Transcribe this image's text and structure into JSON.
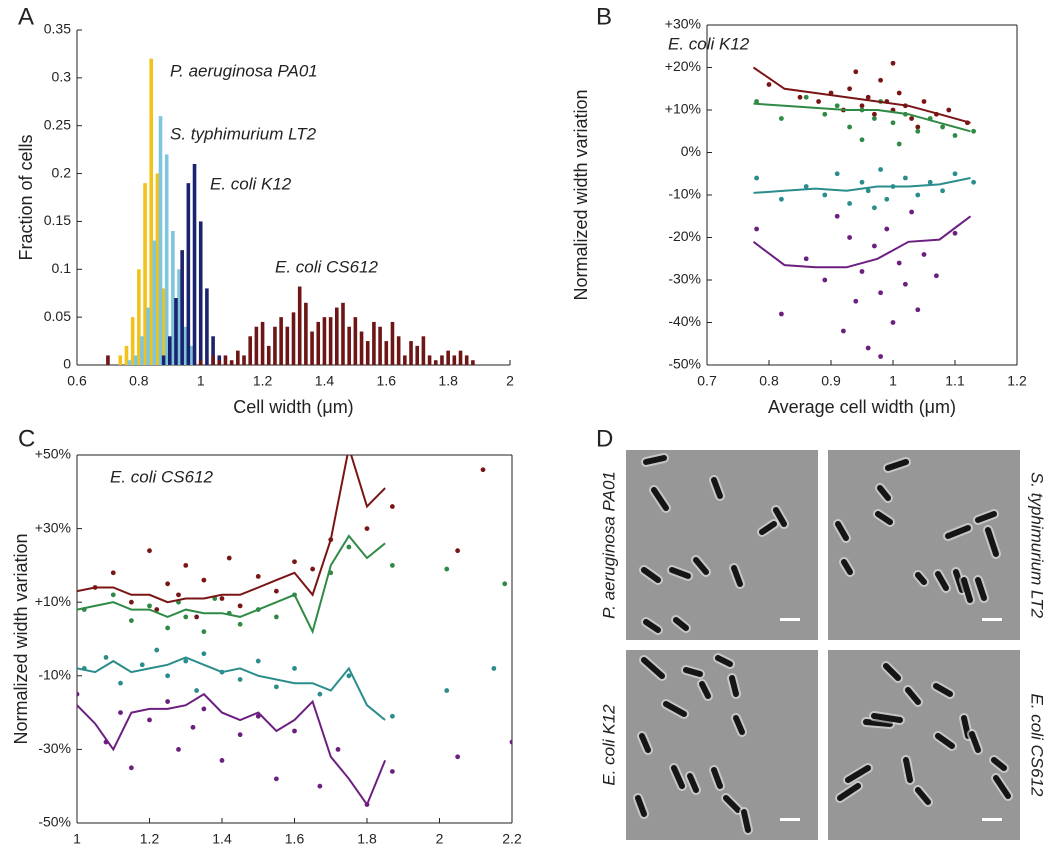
{
  "chart_data": [
    {
      "type": "bar",
      "panel_label": "A",
      "xlabel": "Cell width (μm)",
      "ylabel": "Fraction of cells",
      "xlim": [
        0.6,
        2
      ],
      "ylim": [
        0,
        0.35
      ],
      "xticks": [
        0.6,
        0.8,
        1,
        1.2,
        1.4,
        1.6,
        1.8,
        2
      ],
      "yticks": [
        0,
        0.05,
        0.1,
        0.15,
        0.2,
        0.25,
        0.3,
        0.35
      ],
      "box": false,
      "series": [
        {
          "name": "P. aeruginosa PA01",
          "color": "#f2c21b",
          "x": [
            0.74,
            0.76,
            0.78,
            0.8,
            0.82,
            0.84,
            0.86,
            0.88,
            0.9,
            0.92
          ],
          "values": [
            0.01,
            0.02,
            0.05,
            0.1,
            0.19,
            0.32,
            0.2,
            0.08,
            0.02,
            0.01
          ]
        },
        {
          "name": "S. typhimurium LT2",
          "color": "#7fc6dd",
          "x": [
            0.77,
            0.79,
            0.81,
            0.83,
            0.85,
            0.87,
            0.89,
            0.91,
            0.93,
            0.95,
            0.97
          ],
          "values": [
            0.005,
            0.01,
            0.03,
            0.06,
            0.13,
            0.26,
            0.22,
            0.14,
            0.1,
            0.04,
            0.02
          ]
        },
        {
          "name": "E. coli K12",
          "color": "#1c236e",
          "x": [
            0.88,
            0.9,
            0.92,
            0.94,
            0.96,
            0.98,
            1,
            1.02,
            1.04,
            1.06
          ],
          "values": [
            0.01,
            0.03,
            0.07,
            0.12,
            0.19,
            0.21,
            0.15,
            0.08,
            0.03,
            0.01
          ]
        },
        {
          "name": "E. coli CS612",
          "color": "#6e1616",
          "x": [
            0.7,
            1,
            1.04,
            1.06,
            1.08,
            1.1,
            1.12,
            1.14,
            1.16,
            1.18,
            1.2,
            1.22,
            1.24,
            1.26,
            1.28,
            1.3,
            1.32,
            1.34,
            1.36,
            1.38,
            1.4,
            1.42,
            1.44,
            1.46,
            1.48,
            1.5,
            1.52,
            1.54,
            1.56,
            1.58,
            1.6,
            1.62,
            1.64,
            1.66,
            1.68,
            1.7,
            1.72,
            1.74,
            1.76,
            1.78,
            1.8,
            1.82,
            1.84,
            1.86,
            1.88
          ],
          "values": [
            0.01,
            0.005,
            0.01,
            0.005,
            0.01,
            0.005,
            0.015,
            0.01,
            0.03,
            0.04,
            0.045,
            0.02,
            0.04,
            0.05,
            0.04,
            0.055,
            0.082,
            0.065,
            0.035,
            0.045,
            0.05,
            0.05,
            0.06,
            0.065,
            0.04,
            0.05,
            0.035,
            0.025,
            0.045,
            0.04,
            0.025,
            0.045,
            0.03,
            0.01,
            0.025,
            0.02,
            0.03,
            0.01,
            0.005,
            0.01,
            0.015,
            0.01,
            0.015,
            0.01,
            0.005
          ]
        }
      ]
    },
    {
      "type": "scatter",
      "panel_label": "B",
      "xlabel": "Average cell width (μm)",
      "ylabel": "Normalized width variation",
      "annotation": {
        "text": "E. coli K12",
        "color": "#1c236e"
      },
      "xlim": [
        0.7,
        1.2
      ],
      "ylim": [
        -50,
        30
      ],
      "xticks": [
        0.7,
        0.8,
        0.9,
        1,
        1.1,
        1.2
      ],
      "yticks": [
        {
          "value": -50,
          "label": "-50%"
        },
        {
          "value": -40,
          "label": "-40%"
        },
        {
          "value": -30,
          "label": "-30%"
        },
        {
          "value": -20,
          "label": "-20%"
        },
        {
          "value": -10,
          "label": "-10%"
        },
        {
          "value": 0,
          "label": "0%"
        },
        {
          "value": 10,
          "label": "+10%"
        },
        {
          "value": 20,
          "label": "+20%"
        },
        {
          "value": 30,
          "label": "+30%"
        }
      ],
      "box": true,
      "series": [
        {
          "mode": "markers",
          "color": "#7a1515",
          "x": [
            0.8,
            0.85,
            0.88,
            0.9,
            0.92,
            0.93,
            0.95,
            0.96,
            0.97,
            0.98,
            0.99,
            1,
            1.01,
            1.02,
            1.03,
            1.05,
            1.07,
            1.09,
            1.12,
            0.94,
            1,
            1.04
          ],
          "values": [
            16,
            13,
            12,
            14,
            10,
            15,
            11,
            13,
            9,
            17,
            12,
            10,
            14,
            11,
            8,
            12,
            9,
            10,
            7,
            19,
            21,
            6
          ]
        },
        {
          "mode": "markers",
          "color": "#2f8a45",
          "x": [
            0.78,
            0.82,
            0.86,
            0.89,
            0.91,
            0.93,
            0.95,
            0.97,
            0.98,
            1,
            1.02,
            1.04,
            1.06,
            1.08,
            1.1,
            1.13,
            0.95,
            1.01
          ],
          "values": [
            12,
            8,
            13,
            9,
            11,
            6,
            10,
            8,
            12,
            7,
            9,
            5,
            8,
            6,
            4,
            5,
            3,
            2
          ]
        },
        {
          "mode": "markers",
          "color": "#2a8d8c",
          "x": [
            0.78,
            0.82,
            0.86,
            0.89,
            0.91,
            0.93,
            0.95,
            0.96,
            0.98,
            0.99,
            1,
            1.02,
            1.04,
            1.06,
            1.08,
            1.1,
            1.13,
            0.97
          ],
          "values": [
            -6,
            -11,
            -8,
            -10,
            -5,
            -12,
            -7,
            -9,
            -4,
            -11,
            -8,
            -6,
            -10,
            -7,
            -9,
            -5,
            -7,
            -13
          ]
        },
        {
          "mode": "markers",
          "color": "#6c1f80",
          "x": [
            0.78,
            0.82,
            0.86,
            0.89,
            0.91,
            0.92,
            0.93,
            0.94,
            0.95,
            0.96,
            0.97,
            0.98,
            0.99,
            1,
            1.01,
            1.02,
            1.03,
            1.05,
            1.07,
            1.1,
            0.98,
            1.04
          ],
          "values": [
            -18,
            -38,
            -25,
            -30,
            -15,
            -42,
            -20,
            -35,
            -28,
            -46,
            -22,
            -33,
            -18,
            -40,
            -26,
            -31,
            -14,
            -24,
            -29,
            -19,
            -48,
            -37
          ]
        },
        {
          "mode": "lines",
          "color": "#7a1515",
          "x": [
            0.775,
            0.825,
            0.875,
            0.925,
            0.975,
            1.025,
            1.075,
            1.125
          ],
          "values": [
            20,
            15,
            14,
            13,
            12,
            11,
            9,
            7
          ]
        },
        {
          "mode": "lines",
          "color": "#2f8a45",
          "x": [
            0.775,
            0.825,
            0.875,
            0.925,
            0.975,
            1.025,
            1.075,
            1.125
          ],
          "values": [
            11.5,
            11,
            10.5,
            10,
            10,
            9,
            7,
            5
          ]
        },
        {
          "mode": "lines",
          "color": "#2a8d8c",
          "x": [
            0.775,
            0.825,
            0.875,
            0.925,
            0.975,
            1.025,
            1.075,
            1.125
          ],
          "values": [
            -9.5,
            -9,
            -8.5,
            -9,
            -8,
            -8,
            -7.5,
            -6
          ]
        },
        {
          "mode": "lines",
          "color": "#6c1f80",
          "x": [
            0.775,
            0.825,
            0.875,
            0.925,
            0.975,
            1.025,
            1.075,
            1.125
          ],
          "values": [
            -21,
            -26.5,
            -27,
            -27,
            -25,
            -21,
            -20.5,
            -15
          ]
        }
      ]
    },
    {
      "type": "scatter",
      "panel_label": "C",
      "xlabel": "Average cell width (μm)",
      "ylabel": "Normalized width variation",
      "annotation": {
        "text": "E. coli CS612",
        "color": "#6e1616"
      },
      "xlim": [
        1,
        2.2
      ],
      "ylim": [
        -50,
        50
      ],
      "xticks": [
        1,
        1.2,
        1.4,
        1.6,
        1.8,
        2,
        2.2
      ],
      "yticks": [
        {
          "value": -50,
          "label": "-50%"
        },
        {
          "value": -30,
          "label": "-30%"
        },
        {
          "value": -10,
          "label": "-10%"
        },
        {
          "value": 10,
          "label": "+10%"
        },
        {
          "value": 30,
          "label": "+30%"
        },
        {
          "value": 50,
          "label": "+50%"
        }
      ],
      "box": true,
      "series": [
        {
          "mode": "markers",
          "color": "#7a1515",
          "x": [
            1.05,
            1.1,
            1.15,
            1.2,
            1.22,
            1.25,
            1.28,
            1.3,
            1.33,
            1.35,
            1.4,
            1.42,
            1.45,
            1.5,
            1.55,
            1.6,
            1.65,
            1.7,
            1.8,
            1.87,
            2.12,
            2.05
          ],
          "values": [
            14,
            18,
            10,
            24,
            8,
            15,
            12,
            20,
            6,
            16,
            11,
            22,
            9,
            17,
            13,
            21,
            19,
            27,
            30,
            36,
            46,
            24
          ]
        },
        {
          "mode": "markers",
          "color": "#2f8a45",
          "x": [
            1.02,
            1.1,
            1.15,
            1.2,
            1.25,
            1.28,
            1.3,
            1.35,
            1.38,
            1.42,
            1.45,
            1.5,
            1.55,
            1.6,
            1.7,
            1.75,
            1.87,
            2.02,
            2.18
          ],
          "values": [
            8,
            12,
            5,
            9,
            3,
            10,
            6,
            2,
            11,
            7,
            4,
            8,
            6,
            12,
            18,
            25,
            20,
            19,
            15
          ]
        },
        {
          "mode": "markers",
          "color": "#2a8d8c",
          "x": [
            1.02,
            1.08,
            1.12,
            1.18,
            1.22,
            1.25,
            1.3,
            1.33,
            1.35,
            1.4,
            1.45,
            1.5,
            1.55,
            1.6,
            1.67,
            1.75,
            1.87,
            2.02,
            2.15
          ],
          "values": [
            -8,
            -5,
            -12,
            -7,
            -3,
            -10,
            -6,
            -14,
            -4,
            -9,
            -11,
            -6,
            -13,
            -8,
            -15,
            -10,
            -21,
            -14,
            -8
          ]
        },
        {
          "mode": "markers",
          "color": "#6c1f80",
          "x": [
            1,
            1.08,
            1.12,
            1.15,
            1.2,
            1.25,
            1.28,
            1.32,
            1.35,
            1.4,
            1.45,
            1.5,
            1.55,
            1.6,
            1.67,
            1.72,
            1.8,
            1.87,
            2.05,
            2.2
          ],
          "values": [
            -15,
            -28,
            -20,
            -35,
            -22,
            -17,
            -30,
            -24,
            -19,
            -33,
            -26,
            -21,
            -38,
            -25,
            -40,
            -30,
            -45,
            -36,
            -32,
            -28
          ]
        },
        {
          "mode": "lines",
          "color": "#7a1515",
          "x": [
            1,
            1.05,
            1.1,
            1.15,
            1.2,
            1.25,
            1.3,
            1.35,
            1.4,
            1.45,
            1.5,
            1.55,
            1.6,
            1.65,
            1.7,
            1.75,
            1.8,
            1.85
          ],
          "values": [
            13,
            14,
            14,
            12,
            12,
            10,
            11,
            11,
            12,
            12,
            14,
            16,
            18,
            12,
            27,
            52,
            36,
            41
          ]
        },
        {
          "mode": "lines",
          "color": "#2f8a45",
          "x": [
            1,
            1.05,
            1.1,
            1.15,
            1.2,
            1.25,
            1.3,
            1.35,
            1.4,
            1.45,
            1.5,
            1.55,
            1.6,
            1.65,
            1.7,
            1.75,
            1.8,
            1.85
          ],
          "values": [
            8,
            9,
            10,
            8,
            8,
            6,
            8,
            7,
            7,
            6,
            8,
            10,
            12,
            2,
            20,
            28,
            22,
            26
          ]
        },
        {
          "mode": "lines",
          "color": "#2a8d8c",
          "x": [
            1,
            1.05,
            1.1,
            1.15,
            1.2,
            1.25,
            1.3,
            1.35,
            1.4,
            1.45,
            1.5,
            1.55,
            1.6,
            1.65,
            1.7,
            1.75,
            1.8,
            1.85
          ],
          "values": [
            -8,
            -9,
            -6,
            -9,
            -8,
            -7,
            -5,
            -7,
            -9,
            -8,
            -10,
            -11,
            -12,
            -12,
            -14,
            -8,
            -18,
            -22
          ]
        },
        {
          "mode": "lines",
          "color": "#6c1f80",
          "x": [
            1,
            1.05,
            1.1,
            1.15,
            1.2,
            1.25,
            1.3,
            1.35,
            1.4,
            1.45,
            1.5,
            1.55,
            1.6,
            1.65,
            1.7,
            1.75,
            1.8,
            1.85
          ],
          "values": [
            -18,
            -23,
            -30,
            -20,
            -19,
            -19,
            -18,
            -15,
            -20,
            -22,
            -20,
            -25,
            -22,
            -17,
            -32,
            -38,
            -45,
            -33
          ]
        }
      ]
    }
  ],
  "micrographs": {
    "panel_label": "D",
    "images": [
      {
        "label": "P. aeruginosa PA01",
        "color": "#c9a321"
      },
      {
        "label": "S. typhimurium LT2",
        "color": "#6cc3dc"
      },
      {
        "label": "E. coli K12",
        "color": "#1c236e"
      },
      {
        "label": "E. coli CS612",
        "color": "#6e1616"
      }
    ]
  }
}
